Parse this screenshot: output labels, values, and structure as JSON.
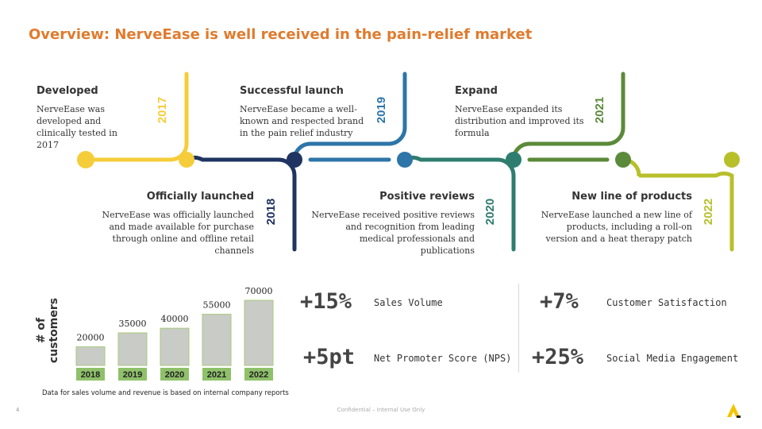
{
  "title": "Overview: NerveEase is well received in the pain-relief market",
  "milestones": [
    {
      "year": "2017",
      "heading": "Developed",
      "text": "NerveEase was developed and clinically tested in 2017",
      "color": "#f5cd3a"
    },
    {
      "year": "2018",
      "heading": "Officially launched",
      "text": "NerveEase was officially launched and made available for purchase through online and offline retail channels",
      "color": "#1f3461"
    },
    {
      "year": "2019",
      "heading": "Successful launch",
      "text": "NerveEase became a well-known and respected brand in the pain relief industry",
      "color": "#2e75a8"
    },
    {
      "year": "2020",
      "heading": "Positive reviews",
      "text": "NerveEase received positive reviews and recognition from leading medical professionals and publications",
      "color": "#2e7d6e"
    },
    {
      "year": "2021",
      "heading": "Expand",
      "text": "NerveEase expanded its distribution and improved its formula",
      "color": "#5b8a3a"
    },
    {
      "year": "2022",
      "heading": "New line of products",
      "text": "NerveEase launched a new line of products, including a roll-on version and a heat therapy patch",
      "color": "#b7c02b"
    }
  ],
  "chart_data": {
    "type": "bar",
    "categories": [
      "2018",
      "2019",
      "2020",
      "2021",
      "2022"
    ],
    "values": [
      20000,
      35000,
      40000,
      55000,
      70000
    ],
    "ylabel": "# of customers",
    "ylim": [
      0,
      70000
    ],
    "note": "Data for sales volume and revenue is based on internal company reports",
    "bar_color": "#c9cbc7",
    "bar_border": "#a8c97a",
    "label_bg": "#8fc06a"
  },
  "stats": [
    {
      "value": "+15%",
      "label": "Sales Volume"
    },
    {
      "value": "+7%",
      "label": "Customer Satisfaction"
    },
    {
      "value": "+5pt",
      "label": "Net Promoter Score (NPS)"
    },
    {
      "value": "+25%",
      "label": "Social Media Engagement"
    }
  ],
  "footer": {
    "page_number": "4",
    "confidential": "Confidential – Internal Use Only"
  },
  "icons": {
    "logo": "company-logo-icon"
  }
}
